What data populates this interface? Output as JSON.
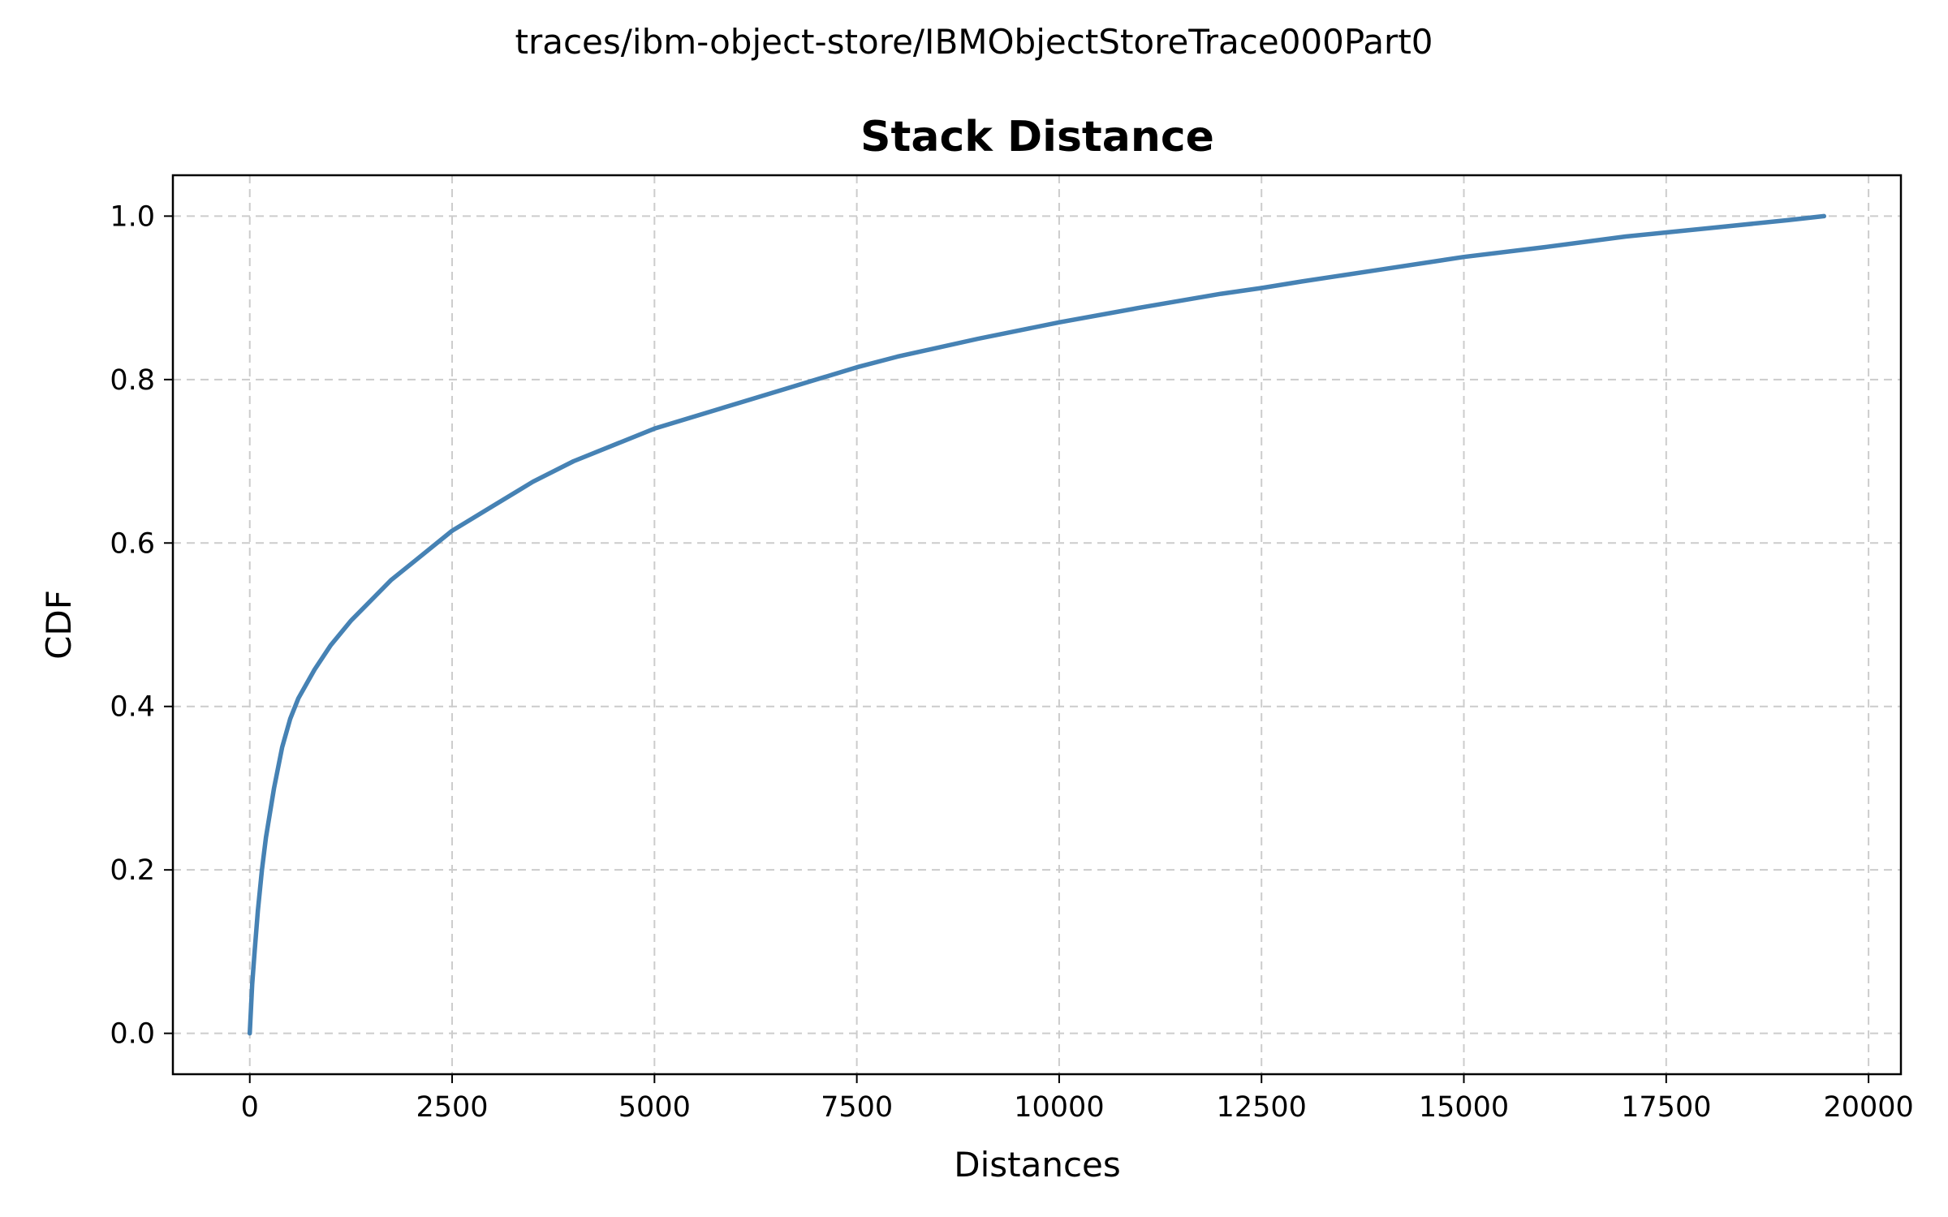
{
  "chart_data": {
    "type": "line",
    "suptitle": "traces/ibm-object-store/IBMObjectStoreTrace000Part0",
    "title": "Stack Distance",
    "xlabel": "Distances",
    "ylabel": "CDF",
    "xlim": [
      -950,
      20400
    ],
    "ylim": [
      -0.05,
      1.05
    ],
    "x_ticks": [
      0,
      2500,
      5000,
      7500,
      10000,
      12500,
      15000,
      17500,
      20000
    ],
    "x_tick_labels": [
      "0",
      "2500",
      "5000",
      "7500",
      "10000",
      "12500",
      "15000",
      "17500",
      "20000"
    ],
    "y_ticks": [
      0.0,
      0.2,
      0.4,
      0.6,
      0.8,
      1.0
    ],
    "y_tick_labels": [
      "0.0",
      "0.2",
      "0.4",
      "0.6",
      "0.8",
      "1.0"
    ],
    "grid": true,
    "legend": "none",
    "line_color": "#4682b4",
    "series": [
      {
        "x": [
          0,
          30,
          60,
          100,
          150,
          200,
          300,
          400,
          500,
          600,
          800,
          1000,
          1250,
          1500,
          1750,
          2000,
          2500,
          3000,
          3500,
          4000,
          5000,
          6000,
          7000,
          7500,
          8000,
          9000,
          10000,
          11000,
          12000,
          12500,
          13000,
          14000,
          15000,
          16000,
          17000,
          17500,
          18000,
          19000,
          19450
        ],
        "values": [
          0.0,
          0.06,
          0.1,
          0.15,
          0.2,
          0.24,
          0.3,
          0.35,
          0.385,
          0.41,
          0.445,
          0.475,
          0.505,
          0.53,
          0.555,
          0.575,
          0.615,
          0.645,
          0.675,
          0.7,
          0.74,
          0.77,
          0.8,
          0.815,
          0.828,
          0.85,
          0.87,
          0.888,
          0.905,
          0.912,
          0.92,
          0.935,
          0.95,
          0.962,
          0.975,
          0.98,
          0.985,
          0.995,
          1.0
        ]
      }
    ]
  }
}
